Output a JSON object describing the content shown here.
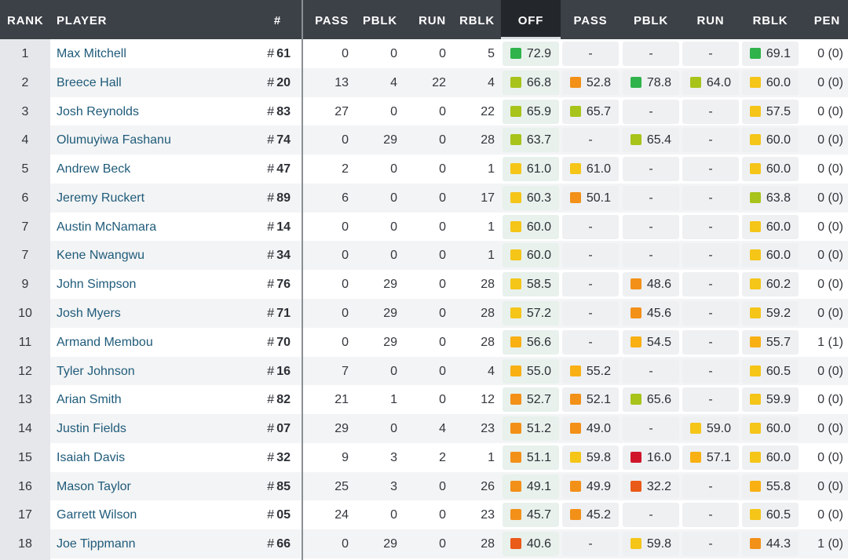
{
  "header": {
    "rank": "RANK",
    "player": "PLAYER",
    "number": "#",
    "snaps_pass": "PASS",
    "snaps_pblk": "PBLK",
    "snaps_run": "RUN",
    "snaps_rblk": "RBLK",
    "off": "OFF",
    "grade_pass": "PASS",
    "grade_pblk": "PBLK",
    "grade_run": "RUN",
    "grade_rblk": "RBLK",
    "pen": "PEN"
  },
  "colors": {
    "header_bg": "#3c4047",
    "header_active_bg": "#23262b",
    "grade_green": "#2fb34a",
    "grade_lime": "#a8c31a",
    "grade_yellow": "#f5c518",
    "grade_amber": "#f9b012",
    "grade_orange": "#f39018",
    "grade_deep_orange": "#ea5a18",
    "grade_red": "#d0142a"
  },
  "rows": [
    {
      "rank": "1",
      "player": "Max Mitchell",
      "hash": "#",
      "number": "61",
      "pass": "0",
      "pblk": "0",
      "run": "0",
      "rblk": "5",
      "off": "72.9",
      "g_pass": "-",
      "g_pblk": "-",
      "g_run": "-",
      "g_rblk": "69.1",
      "pen": "0 (0)"
    },
    {
      "rank": "2",
      "player": "Breece Hall",
      "hash": "#",
      "number": "20",
      "pass": "13",
      "pblk": "4",
      "run": "22",
      "rblk": "4",
      "off": "66.8",
      "g_pass": "52.8",
      "g_pblk": "78.8",
      "g_run": "64.0",
      "g_rblk": "60.0",
      "pen": "0 (0)"
    },
    {
      "rank": "3",
      "player": "Josh Reynolds",
      "hash": "#",
      "number": "83",
      "pass": "27",
      "pblk": "0",
      "run": "0",
      "rblk": "22",
      "off": "65.9",
      "g_pass": "65.7",
      "g_pblk": "-",
      "g_run": "-",
      "g_rblk": "57.5",
      "pen": "0 (0)"
    },
    {
      "rank": "4",
      "player": "Olumuyiwa Fashanu",
      "hash": "#",
      "number": "74",
      "pass": "0",
      "pblk": "29",
      "run": "0",
      "rblk": "28",
      "off": "63.7",
      "g_pass": "-",
      "g_pblk": "65.4",
      "g_run": "-",
      "g_rblk": "60.0",
      "pen": "0 (0)"
    },
    {
      "rank": "5",
      "player": "Andrew Beck",
      "hash": "#",
      "number": "47",
      "pass": "2",
      "pblk": "0",
      "run": "0",
      "rblk": "1",
      "off": "61.0",
      "g_pass": "61.0",
      "g_pblk": "-",
      "g_run": "-",
      "g_rblk": "60.0",
      "pen": "0 (0)"
    },
    {
      "rank": "6",
      "player": "Jeremy Ruckert",
      "hash": "#",
      "number": "89",
      "pass": "6",
      "pblk": "0",
      "run": "0",
      "rblk": "17",
      "off": "60.3",
      "g_pass": "50.1",
      "g_pblk": "-",
      "g_run": "-",
      "g_rblk": "63.8",
      "pen": "0 (0)"
    },
    {
      "rank": "7",
      "player": "Austin McNamara",
      "hash": "#",
      "number": "14",
      "pass": "0",
      "pblk": "0",
      "run": "0",
      "rblk": "1",
      "off": "60.0",
      "g_pass": "-",
      "g_pblk": "-",
      "g_run": "-",
      "g_rblk": "60.0",
      "pen": "0 (0)"
    },
    {
      "rank": "7",
      "player": "Kene Nwangwu",
      "hash": "#",
      "number": "34",
      "pass": "0",
      "pblk": "0",
      "run": "0",
      "rblk": "1",
      "off": "60.0",
      "g_pass": "-",
      "g_pblk": "-",
      "g_run": "-",
      "g_rblk": "60.0",
      "pen": "0 (0)"
    },
    {
      "rank": "9",
      "player": "John Simpson",
      "hash": "#",
      "number": "76",
      "pass": "0",
      "pblk": "29",
      "run": "0",
      "rblk": "28",
      "off": "58.5",
      "g_pass": "-",
      "g_pblk": "48.6",
      "g_run": "-",
      "g_rblk": "60.2",
      "pen": "0 (0)"
    },
    {
      "rank": "10",
      "player": "Josh Myers",
      "hash": "#",
      "number": "71",
      "pass": "0",
      "pblk": "29",
      "run": "0",
      "rblk": "28",
      "off": "57.2",
      "g_pass": "-",
      "g_pblk": "45.6",
      "g_run": "-",
      "g_rblk": "59.2",
      "pen": "0 (0)"
    },
    {
      "rank": "11",
      "player": "Armand Membou",
      "hash": "#",
      "number": "70",
      "pass": "0",
      "pblk": "29",
      "run": "0",
      "rblk": "28",
      "off": "56.6",
      "g_pass": "-",
      "g_pblk": "54.5",
      "g_run": "-",
      "g_rblk": "55.7",
      "pen": "1 (1)"
    },
    {
      "rank": "12",
      "player": "Tyler Johnson",
      "hash": "#",
      "number": "16",
      "pass": "7",
      "pblk": "0",
      "run": "0",
      "rblk": "4",
      "off": "55.0",
      "g_pass": "55.2",
      "g_pblk": "-",
      "g_run": "-",
      "g_rblk": "60.5",
      "pen": "0 (0)"
    },
    {
      "rank": "13",
      "player": "Arian Smith",
      "hash": "#",
      "number": "82",
      "pass": "21",
      "pblk": "1",
      "run": "0",
      "rblk": "12",
      "off": "52.7",
      "g_pass": "52.1",
      "g_pblk": "65.6",
      "g_run": "-",
      "g_rblk": "59.9",
      "pen": "0 (0)"
    },
    {
      "rank": "14",
      "player": "Justin Fields",
      "hash": "#",
      "number": "07",
      "pass": "29",
      "pblk": "0",
      "run": "4",
      "rblk": "23",
      "off": "51.2",
      "g_pass": "49.0",
      "g_pblk": "-",
      "g_run": "59.0",
      "g_rblk": "60.0",
      "pen": "0 (0)"
    },
    {
      "rank": "15",
      "player": "Isaiah Davis",
      "hash": "#",
      "number": "32",
      "pass": "9",
      "pblk": "3",
      "run": "2",
      "rblk": "1",
      "off": "51.1",
      "g_pass": "59.8",
      "g_pblk": "16.0",
      "g_run": "57.1",
      "g_rblk": "60.0",
      "pen": "0 (0)"
    },
    {
      "rank": "16",
      "player": "Mason Taylor",
      "hash": "#",
      "number": "85",
      "pass": "25",
      "pblk": "3",
      "run": "0",
      "rblk": "26",
      "off": "49.1",
      "g_pass": "49.9",
      "g_pblk": "32.2",
      "g_run": "-",
      "g_rblk": "55.8",
      "pen": "0 (0)"
    },
    {
      "rank": "17",
      "player": "Garrett Wilson",
      "hash": "#",
      "number": "05",
      "pass": "24",
      "pblk": "0",
      "run": "0",
      "rblk": "23",
      "off": "45.7",
      "g_pass": "45.2",
      "g_pblk": "-",
      "g_run": "-",
      "g_rblk": "60.5",
      "pen": "0 (0)"
    },
    {
      "rank": "18",
      "player": "Joe Tippmann",
      "hash": "#",
      "number": "66",
      "pass": "0",
      "pblk": "29",
      "run": "0",
      "rblk": "28",
      "off": "40.6",
      "g_pass": "-",
      "g_pblk": "59.8",
      "g_run": "-",
      "g_rblk": "44.3",
      "pen": "1 (0)"
    }
  ]
}
